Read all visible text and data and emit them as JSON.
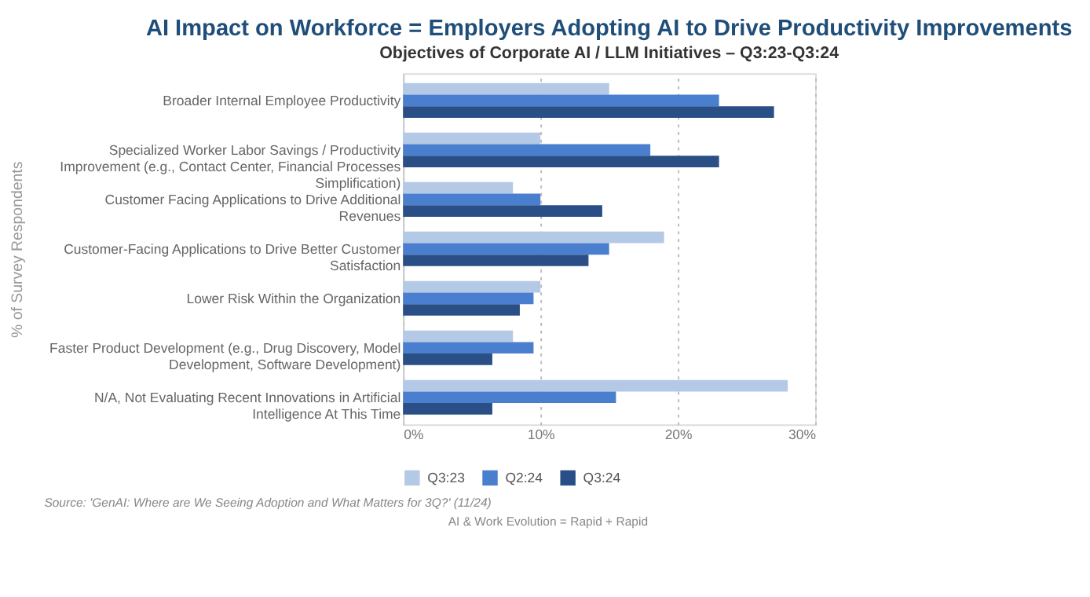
{
  "chart_data": {
    "type": "bar",
    "orientation": "horizontal",
    "title": "AI Impact on Workforce = Employers Adopting AI to Drive Productivity Improvements",
    "subtitle": "Objectives of Corporate AI / LLM Initiatives – Q3:23-Q3:24",
    "ylabel": "% of Survey Respondents",
    "categories": [
      "Broader Internal Employee Productivity",
      "Specialized Worker Labor Savings / Productivity Improvement (e.g., Contact Center, Financial Processes Simplification)",
      "Customer Facing Applications to Drive Additional Revenues",
      "Customer-Facing Applications to Drive Better Customer Satisfaction",
      "Lower Risk Within the Organization",
      "Faster Product Development (e.g., Drug Discovery, Model Development, Software Development)",
      "N/A, Not Evaluating Recent Innovations in Artificial Intelligence At This Time"
    ],
    "series": [
      {
        "name": "Q3:23",
        "color": "#b4c9e6",
        "values": [
          15,
          10,
          8,
          19,
          10,
          8,
          28
        ]
      },
      {
        "name": "Q2:24",
        "color": "#4a7fcf",
        "values": [
          23,
          18,
          10,
          15,
          9.5,
          9.5,
          15.5
        ]
      },
      {
        "name": "Q3:24",
        "color": "#2a4f86",
        "values": [
          27,
          23,
          14.5,
          13.5,
          8.5,
          6.5,
          6.5
        ]
      }
    ],
    "xlim": [
      0,
      30
    ],
    "xticks": [
      {
        "value": 0,
        "label": "0%"
      },
      {
        "value": 10,
        "label": "10%"
      },
      {
        "value": 20,
        "label": "20%"
      },
      {
        "value": 30,
        "label": "30%"
      }
    ],
    "grid": "x",
    "legend": "bottom",
    "annotations": [
      "Source: 'GenAI: Where are We Seeing Adoption and What Matters for 3Q?' (11/24)",
      "AI & Work Evolution = Rapid + Rapid"
    ]
  }
}
